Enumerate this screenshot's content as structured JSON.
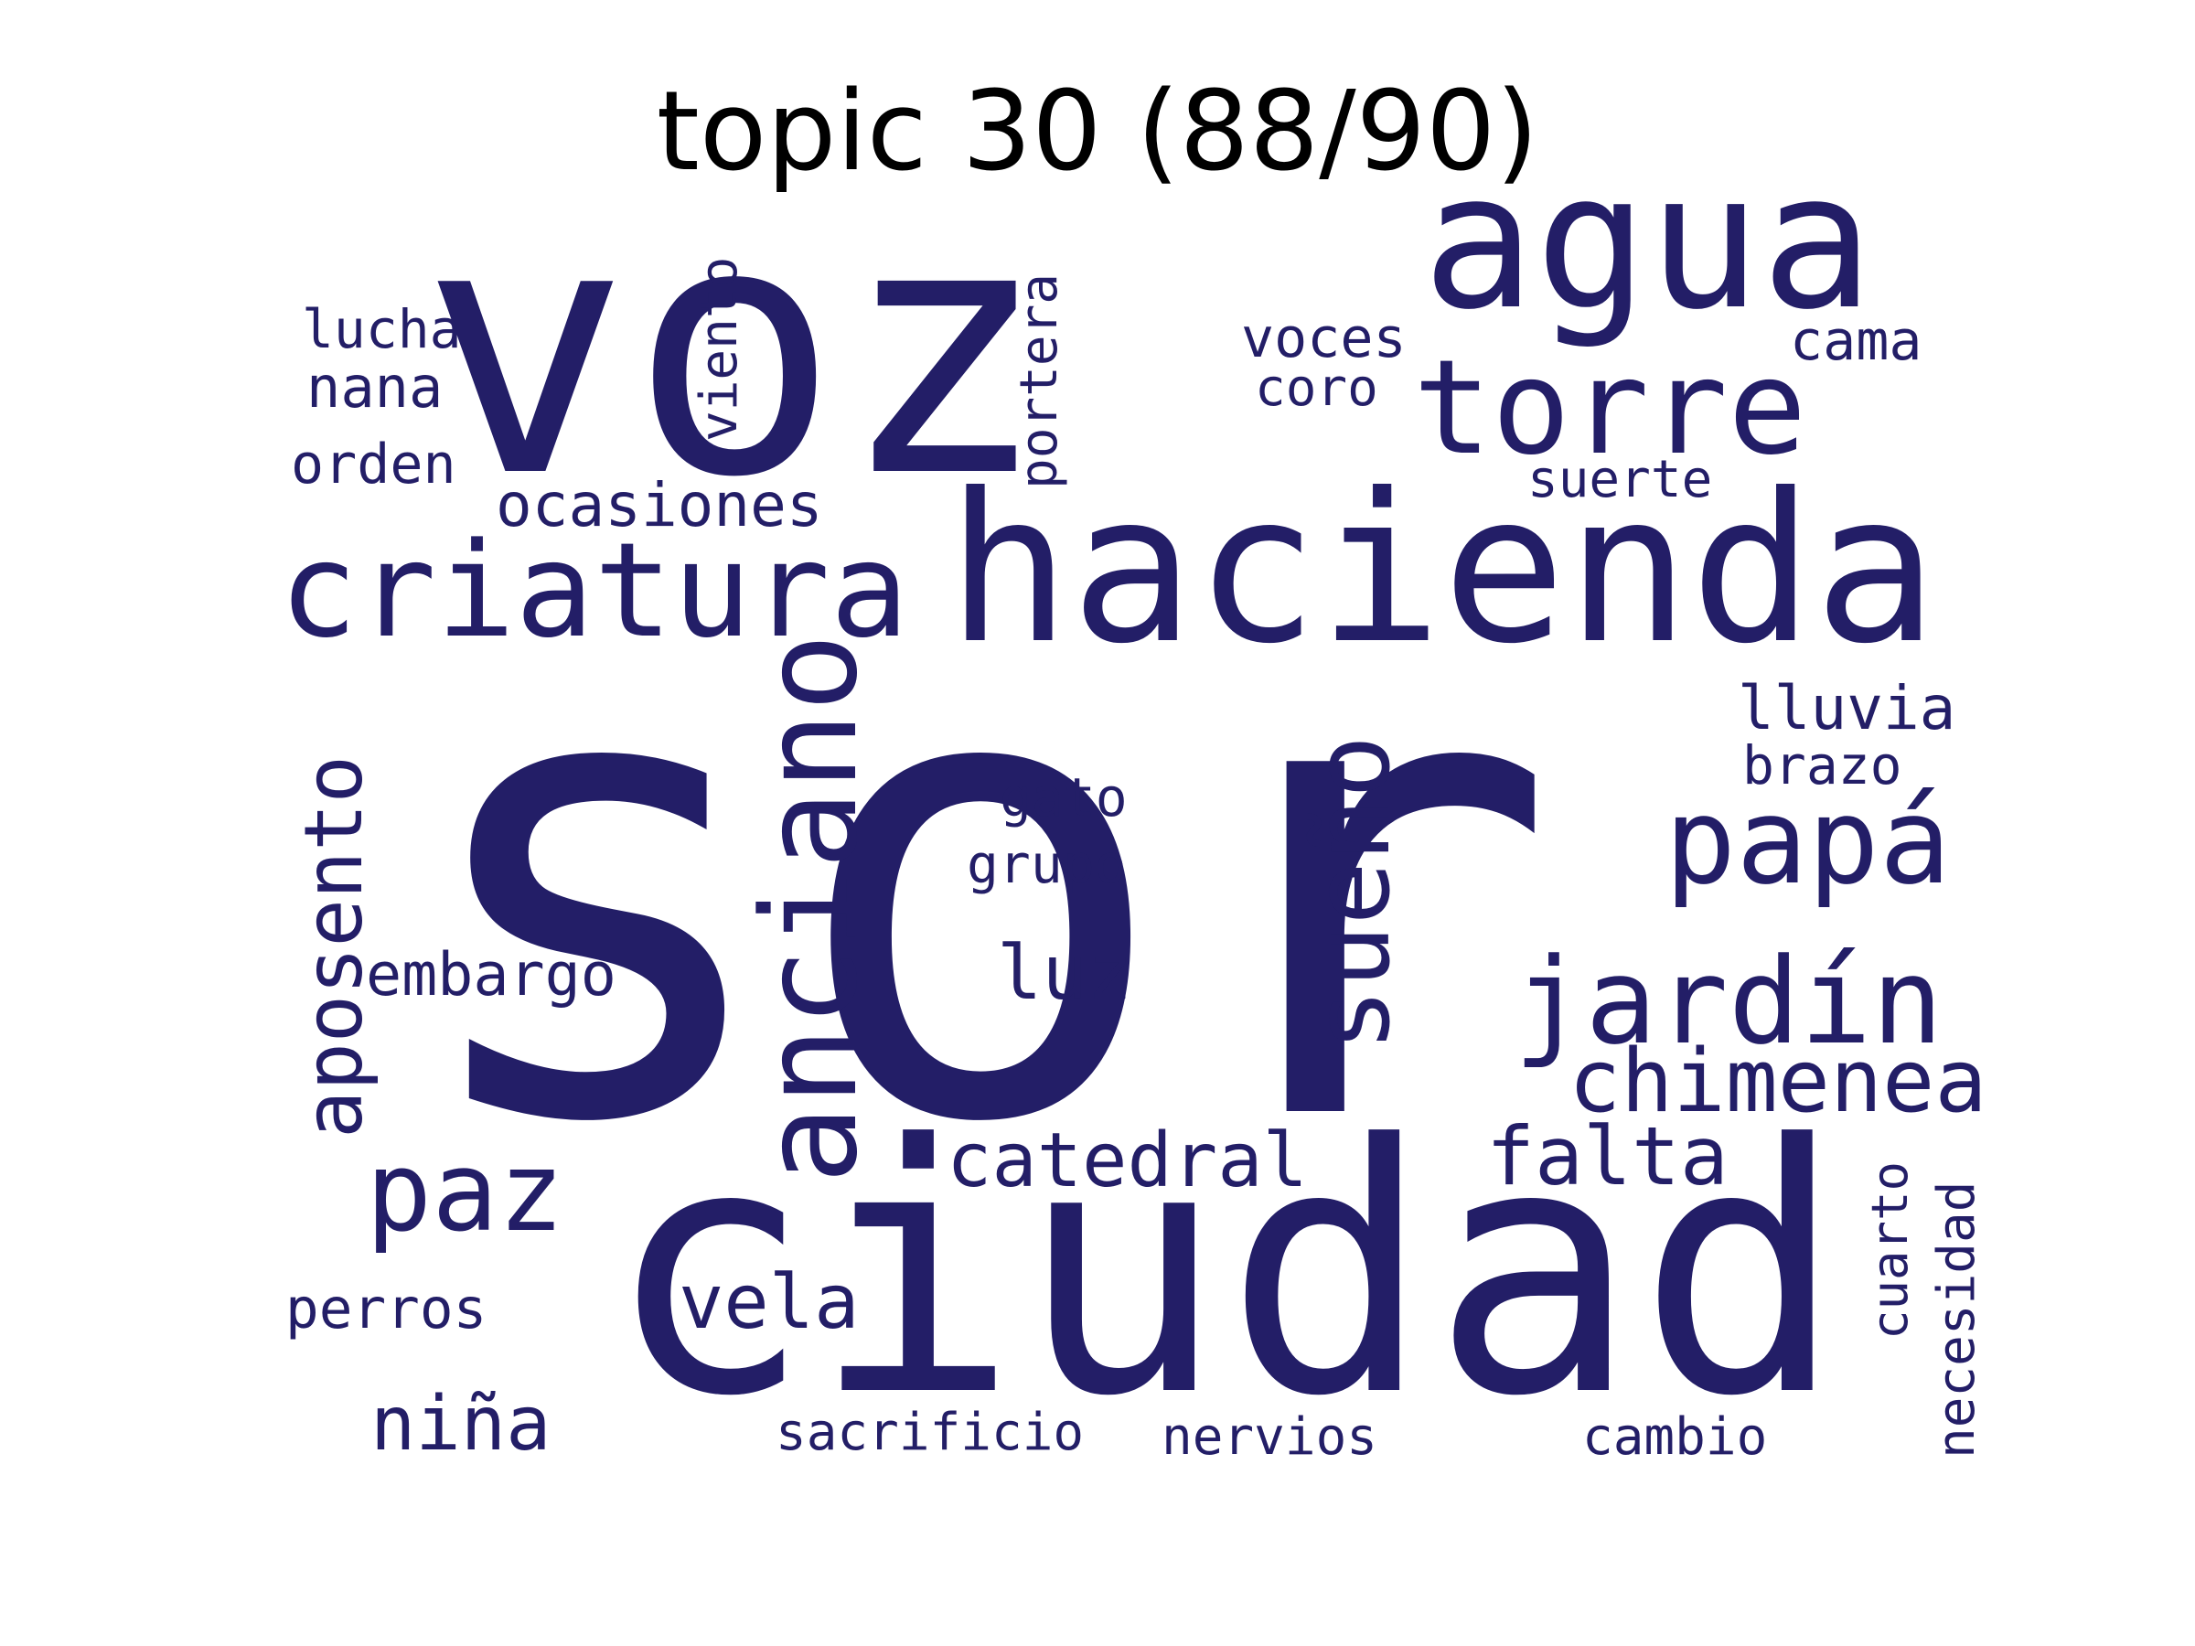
{
  "title": "topic 30 (88/90)",
  "word_color": "#231e67",
  "background_color": "#ffffff",
  "words": [
    {
      "text": "sor",
      "orientation": "horizontal"
    },
    {
      "text": "voz",
      "orientation": "horizontal"
    },
    {
      "text": "ciudad",
      "orientation": "horizontal"
    },
    {
      "text": "hacienda",
      "orientation": "horizontal"
    },
    {
      "text": "agua",
      "orientation": "horizontal"
    },
    {
      "text": "criatura",
      "orientation": "horizontal"
    },
    {
      "text": "torre",
      "orientation": "horizontal"
    },
    {
      "text": "anciano",
      "orientation": "vertical"
    },
    {
      "text": "papá",
      "orientation": "horizontal"
    },
    {
      "text": "jardín",
      "orientation": "horizontal"
    },
    {
      "text": "sueño",
      "orientation": "vertical"
    },
    {
      "text": "paz",
      "orientation": "horizontal"
    },
    {
      "text": "aposento",
      "orientation": "vertical"
    },
    {
      "text": "chimenea",
      "orientation": "horizontal"
    },
    {
      "text": "falta",
      "orientation": "horizontal"
    },
    {
      "text": "catedral",
      "orientation": "horizontal"
    },
    {
      "text": "luz",
      "orientation": "horizontal"
    },
    {
      "text": "vela",
      "orientation": "horizontal"
    },
    {
      "text": "niña",
      "orientation": "horizontal"
    },
    {
      "text": "ocasiones",
      "orientation": "horizontal"
    },
    {
      "text": "embargo",
      "orientation": "horizontal"
    },
    {
      "text": "lluvia",
      "orientation": "horizontal"
    },
    {
      "text": "portera",
      "orientation": "vertical"
    },
    {
      "text": "viento",
      "orientation": "vertical"
    },
    {
      "text": "perros",
      "orientation": "horizontal"
    },
    {
      "text": "voces",
      "orientation": "horizontal"
    },
    {
      "text": "cama",
      "orientation": "horizontal"
    },
    {
      "text": "lucha",
      "orientation": "horizontal"
    },
    {
      "text": "nana",
      "orientation": "horizontal"
    },
    {
      "text": "orden",
      "orientation": "horizontal"
    },
    {
      "text": "gato",
      "orientation": "horizontal"
    },
    {
      "text": "grupo",
      "orientation": "horizontal"
    },
    {
      "text": "brazo",
      "orientation": "horizontal"
    },
    {
      "text": "coro",
      "orientation": "horizontal"
    },
    {
      "text": "suerte",
      "orientation": "horizontal"
    },
    {
      "text": "sacrificio",
      "orientation": "horizontal"
    },
    {
      "text": "nervios",
      "orientation": "horizontal"
    },
    {
      "text": "cambio",
      "orientation": "horizontal"
    },
    {
      "text": "cuarto",
      "orientation": "vertical"
    },
    {
      "text": "necesidad",
      "orientation": "vertical"
    }
  ]
}
